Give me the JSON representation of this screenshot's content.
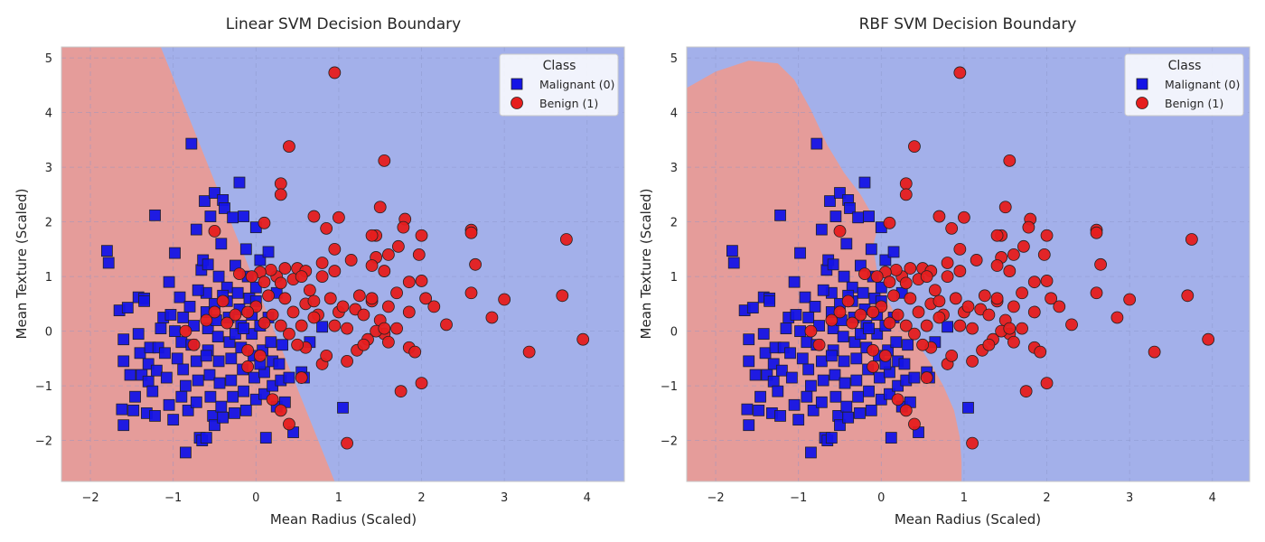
{
  "colors": {
    "malignant_marker": "#1414e6",
    "benign_marker": "#e61e1e",
    "malignant_region": "#a3b0ea",
    "benign_region": "#e59c9a",
    "marker_edge": "#222222",
    "grid": "#8a95c8",
    "axes_border": "#c8c8c8"
  },
  "chart_data": [
    {
      "type": "scatter",
      "title": "Linear SVM Decision Boundary",
      "xlabel": "Mean Radius (Scaled)",
      "ylabel": "Mean Texture (Scaled)",
      "xlim": [
        -2.35,
        4.45
      ],
      "ylim": [
        -2.75,
        5.2
      ],
      "xticks": [
        -2,
        -1,
        0,
        1,
        2,
        3,
        4
      ],
      "yticks": [
        -2,
        -1,
        0,
        1,
        2,
        3,
        4,
        5
      ],
      "grid": true,
      "background_regions": "linear boundary: benign (red) region left of line through (-1.15, 5.2) and (0.95, -2.75); malignant (blue) elsewhere",
      "boundary_line": [
        [
          -1.15,
          5.2
        ],
        [
          0.95,
          -2.75
        ]
      ],
      "legend": {
        "title": "Class",
        "position": "top-right",
        "entries": [
          "Malignant (0)",
          "Benign (1)"
        ]
      }
    },
    {
      "type": "scatter",
      "title": "RBF SVM Decision Boundary",
      "xlabel": "Mean Radius (Scaled)",
      "ylabel": "Mean Texture (Scaled)",
      "xlim": [
        -2.35,
        4.45
      ],
      "ylim": [
        -2.75,
        5.2
      ],
      "xticks": [
        -2,
        -1,
        0,
        1,
        2,
        3,
        4
      ],
      "yticks": [
        -2,
        -1,
        0,
        1,
        2,
        3,
        4,
        5
      ],
      "grid": true,
      "background_regions": "rbf boundary: benign (red) region is a curved lobe on the left and lower-center; malignant (blue) elsewhere",
      "boundary_polygon": [
        [
          -2.35,
          4.45
        ],
        [
          -2.0,
          4.75
        ],
        [
          -1.6,
          4.95
        ],
        [
          -1.25,
          4.9
        ],
        [
          -1.05,
          4.6
        ],
        [
          -0.85,
          4.05
        ],
        [
          -0.65,
          3.4
        ],
        [
          -0.45,
          2.9
        ],
        [
          -0.25,
          2.5
        ],
        [
          -0.1,
          2.1
        ],
        [
          -0.05,
          1.85
        ],
        [
          -0.1,
          1.55
        ],
        [
          -0.05,
          1.1
        ],
        [
          0.1,
          0.5
        ],
        [
          0.25,
          0.1
        ],
        [
          0.45,
          -0.25
        ],
        [
          0.6,
          -0.6
        ],
        [
          0.75,
          -1.0
        ],
        [
          0.88,
          -1.45
        ],
        [
          0.95,
          -1.95
        ],
        [
          0.97,
          -2.4
        ],
        [
          0.97,
          -2.75
        ],
        [
          -2.35,
          -2.75
        ]
      ],
      "legend": {
        "title": "Class",
        "position": "top-right",
        "entries": [
          "Malignant (0)",
          "Benign (1)"
        ]
      }
    }
  ],
  "series": [
    {
      "name": "Malignant (0)",
      "marker": "square",
      "points": [
        [
          -1.8,
          1.47
        ],
        [
          -1.78,
          1.25
        ],
        [
          -1.65,
          0.38
        ],
        [
          -1.55,
          0.43
        ],
        [
          -1.6,
          -0.15
        ],
        [
          -1.6,
          -0.55
        ],
        [
          -1.62,
          -1.43
        ],
        [
          -1.6,
          -1.72
        ],
        [
          -1.48,
          -1.45
        ],
        [
          -1.46,
          -1.2
        ],
        [
          -1.52,
          -0.8
        ],
        [
          -1.38,
          -0.8
        ],
        [
          -1.4,
          -0.4
        ],
        [
          -1.42,
          -0.05
        ],
        [
          -1.42,
          0.62
        ],
        [
          -1.35,
          0.6
        ],
        [
          -1.35,
          0.55
        ],
        [
          -1.28,
          -0.3
        ],
        [
          -1.3,
          -0.6
        ],
        [
          -1.3,
          -0.92
        ],
        [
          -1.25,
          -1.1
        ],
        [
          -1.32,
          -1.5
        ],
        [
          -1.22,
          -1.55
        ],
        [
          -1.2,
          -0.72
        ],
        [
          -1.18,
          -0.3
        ],
        [
          -1.15,
          0.05
        ],
        [
          -1.12,
          0.25
        ],
        [
          -1.22,
          2.12
        ],
        [
          -1.1,
          -0.4
        ],
        [
          -1.08,
          -0.85
        ],
        [
          -1.05,
          -1.35
        ],
        [
          -1.0,
          -1.62
        ],
        [
          -1.03,
          0.3
        ],
        [
          -0.98,
          0.0
        ],
        [
          -0.95,
          -0.5
        ],
        [
          -1.05,
          0.9
        ],
        [
          -0.98,
          1.43
        ],
        [
          -0.92,
          0.62
        ],
        [
          -0.88,
          0.25
        ],
        [
          -0.9,
          -0.2
        ],
        [
          -0.88,
          -0.7
        ],
        [
          -0.85,
          -1.0
        ],
        [
          -0.82,
          -1.45
        ],
        [
          -0.85,
          -2.22
        ],
        [
          -0.78,
          -0.25
        ],
        [
          -0.8,
          0.45
        ],
        [
          -0.75,
          0.1
        ],
        [
          -0.72,
          -0.55
        ],
        [
          -0.7,
          -0.9
        ],
        [
          -0.72,
          -1.3
        ],
        [
          -0.68,
          -1.95
        ],
        [
          -0.65,
          -2.0
        ],
        [
          -0.6,
          -1.95
        ],
        [
          -0.78,
          3.43
        ],
        [
          -0.72,
          1.86
        ],
        [
          -0.66,
          1.12
        ],
        [
          -0.64,
          1.3
        ],
        [
          -0.6,
          0.7
        ],
        [
          -0.6,
          0.35
        ],
        [
          -0.58,
          0.05
        ],
        [
          -0.58,
          -0.35
        ],
        [
          -0.56,
          -0.8
        ],
        [
          -0.55,
          -1.2
        ],
        [
          -0.52,
          -1.55
        ],
        [
          -0.5,
          -1.72
        ],
        [
          -0.62,
          2.38
        ],
        [
          -0.58,
          1.22
        ],
        [
          -0.55,
          2.1
        ],
        [
          -0.5,
          2.53
        ],
        [
          -0.5,
          0.5
        ],
        [
          -0.48,
          0.2
        ],
        [
          -0.46,
          -0.1
        ],
        [
          -0.45,
          -0.55
        ],
        [
          -0.44,
          -0.95
        ],
        [
          -0.42,
          -1.38
        ],
        [
          -0.4,
          -1.58
        ],
        [
          -0.45,
          1.0
        ],
        [
          -0.42,
          1.6
        ],
        [
          -0.4,
          2.4
        ],
        [
          -0.38,
          2.25
        ],
        [
          -0.35,
          0.8
        ],
        [
          -0.35,
          0.55
        ],
        [
          -0.33,
          0.25
        ],
        [
          -0.32,
          -0.2
        ],
        [
          -0.3,
          -0.5
        ],
        [
          -0.3,
          -0.9
        ],
        [
          -0.28,
          -1.2
        ],
        [
          -0.26,
          -1.5
        ],
        [
          -0.28,
          2.08
        ],
        [
          -0.2,
          2.72
        ],
        [
          -0.25,
          1.2
        ],
        [
          -0.22,
          0.7
        ],
        [
          -0.2,
          0.4
        ],
        [
          -0.18,
          0.1
        ],
        [
          -0.18,
          -0.3
        ],
        [
          -0.16,
          -0.7
        ],
        [
          -0.15,
          -1.1
        ],
        [
          -0.12,
          -1.45
        ],
        [
          -0.15,
          2.1
        ],
        [
          -0.12,
          1.5
        ],
        [
          -0.1,
          1.0
        ],
        [
          -0.08,
          0.6
        ],
        [
          -0.05,
          0.3
        ],
        [
          -0.05,
          -0.05
        ],
        [
          -0.03,
          -0.45
        ],
        [
          -0.02,
          -0.85
        ],
        [
          0.0,
          -1.25
        ],
        [
          0.0,
          1.9
        ],
        [
          0.0,
          0.55
        ],
        [
          0.05,
          1.3
        ],
        [
          0.05,
          0.1
        ],
        [
          0.08,
          -0.35
        ],
        [
          0.1,
          -0.75
        ],
        [
          0.1,
          -1.15
        ],
        [
          0.12,
          -1.95
        ],
        [
          0.15,
          1.45
        ],
        [
          0.15,
          0.25
        ],
        [
          0.18,
          -0.2
        ],
        [
          0.2,
          -0.55
        ],
        [
          0.2,
          -1.0
        ],
        [
          0.25,
          0.7
        ],
        [
          0.25,
          -1.38
        ],
        [
          0.28,
          -0.6
        ],
        [
          0.3,
          -0.9
        ],
        [
          0.35,
          -1.3
        ],
        [
          0.4,
          -0.85
        ],
        [
          0.45,
          -1.85
        ],
        [
          0.55,
          -0.75
        ],
        [
          0.58,
          -0.85
        ],
        [
          0.65,
          -0.2
        ],
        [
          0.8,
          0.08
        ],
        [
          1.05,
          -1.4
        ],
        [
          0.32,
          -0.25
        ],
        [
          0.0,
          0.8
        ],
        [
          -0.25,
          -0.05
        ],
        [
          -0.6,
          -0.45
        ],
        [
          -0.9,
          -1.2
        ],
        [
          -0.7,
          0.75
        ],
        [
          -0.4,
          0.65
        ],
        [
          -0.15,
          0.05
        ],
        [
          0.05,
          -0.6
        ]
      ]
    },
    {
      "name": "Benign (1)",
      "marker": "circle",
      "points": [
        [
          0.95,
          4.73
        ],
        [
          0.4,
          3.38
        ],
        [
          1.55,
          3.12
        ],
        [
          0.3,
          2.7
        ],
        [
          0.3,
          2.5
        ],
        [
          0.1,
          1.98
        ],
        [
          0.7,
          2.1
        ],
        [
          1.0,
          2.08
        ],
        [
          1.45,
          1.75
        ],
        [
          1.5,
          2.27
        ],
        [
          1.8,
          2.05
        ],
        [
          1.6,
          1.4
        ],
        [
          1.78,
          1.9
        ],
        [
          2.0,
          1.75
        ],
        [
          2.6,
          1.85
        ],
        [
          2.6,
          1.8
        ],
        [
          3.75,
          1.68
        ],
        [
          2.65,
          1.22
        ],
        [
          0.85,
          1.88
        ],
        [
          1.4,
          1.75
        ],
        [
          -0.5,
          1.83
        ],
        [
          0.95,
          1.5
        ],
        [
          1.45,
          1.35
        ],
        [
          1.72,
          1.55
        ],
        [
          1.97,
          1.4
        ],
        [
          0.8,
          1.25
        ],
        [
          0.5,
          1.15
        ],
        [
          0.35,
          1.15
        ],
        [
          0.25,
          1.0
        ],
        [
          0.18,
          1.12
        ],
        [
          0.05,
          1.08
        ],
        [
          -0.05,
          1.0
        ],
        [
          -0.2,
          1.05
        ],
        [
          0.1,
          0.9
        ],
        [
          0.3,
          0.88
        ],
        [
          0.45,
          0.95
        ],
        [
          0.6,
          1.1
        ],
        [
          0.8,
          1.0
        ],
        [
          0.95,
          1.1
        ],
        [
          1.15,
          1.3
        ],
        [
          1.4,
          1.2
        ],
        [
          1.55,
          1.1
        ],
        [
          1.85,
          0.9
        ],
        [
          2.0,
          0.92
        ],
        [
          2.6,
          0.7
        ],
        [
          3.7,
          0.65
        ],
        [
          3.0,
          0.58
        ],
        [
          1.0,
          0.35
        ],
        [
          0.95,
          0.1
        ],
        [
          1.1,
          0.05
        ],
        [
          1.2,
          0.4
        ],
        [
          1.3,
          0.3
        ],
        [
          1.4,
          0.55
        ],
        [
          1.6,
          0.45
        ],
        [
          1.85,
          0.35
        ],
        [
          2.15,
          0.45
        ],
        [
          2.3,
          0.12
        ],
        [
          2.85,
          0.25
        ],
        [
          1.7,
          0.05
        ],
        [
          1.5,
          0.2
        ],
        [
          1.1,
          -0.55
        ],
        [
          1.22,
          -0.35
        ],
        [
          1.35,
          -0.15
        ],
        [
          1.55,
          -0.05
        ],
        [
          1.6,
          -0.2
        ],
        [
          1.85,
          -0.3
        ],
        [
          1.92,
          -0.38
        ],
        [
          1.75,
          -1.1
        ],
        [
          2.0,
          -0.95
        ],
        [
          3.3,
          -0.38
        ],
        [
          3.95,
          -0.15
        ],
        [
          0.8,
          -0.6
        ],
        [
          0.85,
          -0.45
        ],
        [
          0.6,
          -0.3
        ],
        [
          0.5,
          -0.25
        ],
        [
          0.4,
          -0.05
        ],
        [
          0.45,
          0.35
        ],
        [
          0.6,
          0.5
        ],
        [
          0.7,
          0.55
        ],
        [
          0.2,
          0.3
        ],
        [
          0.15,
          0.65
        ],
        [
          0.0,
          0.45
        ],
        [
          -0.1,
          0.35
        ],
        [
          -0.25,
          0.3
        ],
        [
          -0.4,
          0.55
        ],
        [
          -0.5,
          0.35
        ],
        [
          -0.6,
          0.2
        ],
        [
          -0.85,
          0.0
        ],
        [
          -0.75,
          -0.25
        ],
        [
          0.05,
          -0.45
        ],
        [
          0.2,
          -1.25
        ],
        [
          0.3,
          -1.45
        ],
        [
          0.4,
          -1.7
        ],
        [
          0.55,
          -0.85
        ],
        [
          1.1,
          -2.05
        ],
        [
          -0.1,
          -0.65
        ],
        [
          -0.1,
          -0.35
        ],
        [
          0.35,
          0.6
        ],
        [
          0.65,
          0.75
        ],
        [
          1.25,
          0.65
        ],
        [
          1.4,
          0.6
        ],
        [
          1.7,
          0.7
        ],
        [
          2.05,
          0.6
        ],
        [
          0.9,
          0.6
        ],
        [
          1.05,
          0.45
        ],
        [
          0.3,
          0.1
        ],
        [
          0.55,
          0.1
        ],
        [
          0.75,
          0.3
        ],
        [
          1.3,
          -0.25
        ],
        [
          1.45,
          0.0
        ],
        [
          1.55,
          0.05
        ],
        [
          0.55,
          1.0
        ],
        [
          0.7,
          0.25
        ],
        [
          0.1,
          0.15
        ],
        [
          -0.35,
          0.15
        ]
      ]
    }
  ]
}
